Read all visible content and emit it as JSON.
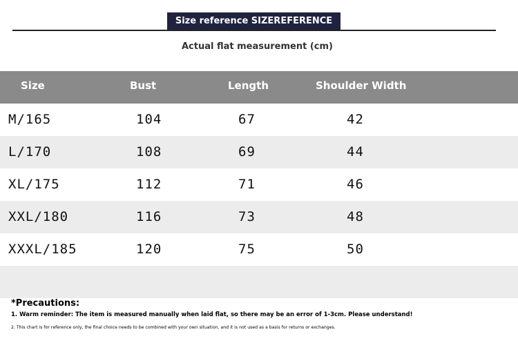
{
  "header": {
    "title": "Size reference SIZEREFERENCE",
    "subtitle": "Actual flat measurement (cm)"
  },
  "table": {
    "columns": [
      "Size",
      "Bust",
      "Length",
      "Shoulder Width"
    ],
    "rows": [
      [
        "M/165",
        "104",
        "67",
        "42"
      ],
      [
        "L/170",
        "108",
        "69",
        "44"
      ],
      [
        "XL/175",
        "112",
        "71",
        "46"
      ],
      [
        "XXL/180",
        "116",
        "73",
        "48"
      ],
      [
        "XXXL/185",
        "120",
        "75",
        "50"
      ]
    ]
  },
  "notes": {
    "title": "*Precautions:",
    "items": [
      "1. Warm reminder: The item is measured manually when laid flat, so there may be an error of 1-3cm. Please understand!",
      "2. This chart is for reference only, the final choice needs to be combined with your own situation, and it is not used as a basis for returns or exchanges."
    ]
  }
}
